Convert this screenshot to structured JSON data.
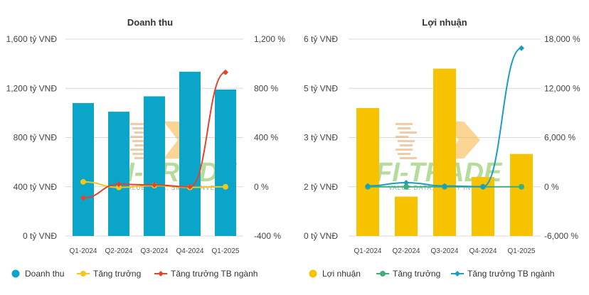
{
  "watermark": {
    "brand": "FI-TRADE",
    "tagline": "VALUE DATA, SMART INVEST"
  },
  "colors": {
    "revenue": "#0aa5c8",
    "revenue_growth": "#f5c518",
    "revenue_industry": "#e0442c",
    "profit": "#f7c200",
    "profit_growth": "#3db07a",
    "profit_industry": "#1a9dc2"
  },
  "chart_data": [
    {
      "type": "bar",
      "title": "Doanh thu",
      "categories": [
        "Q1-2024",
        "Q2-2024",
        "Q3-2024",
        "Q4-2024",
        "Q1-2025"
      ],
      "y_left": {
        "ticks": [
          "1,600 tỷ VNĐ",
          "1,200 tỷ VNĐ",
          "800 tỷ VNĐ",
          "400 tỷ VNĐ",
          "0 tỷ VNĐ"
        ],
        "range": [
          0,
          1600
        ]
      },
      "y_right": {
        "ticks": [
          "1,200 %",
          "800 %",
          "400 %",
          "0 %",
          "-400 %"
        ],
        "range": [
          -400,
          1200
        ]
      },
      "series": [
        {
          "name": "Doanh thu",
          "kind": "bar",
          "axis": "left",
          "values": [
            1080,
            1010,
            1135,
            1335,
            1190
          ]
        },
        {
          "name": "Tăng trưởng",
          "kind": "line",
          "axis": "right",
          "values": [
            40,
            -5,
            10,
            -5,
            0
          ]
        },
        {
          "name": "Tăng trưởng TB ngành",
          "kind": "line",
          "axis": "right",
          "values": [
            -90,
            20,
            15,
            0,
            930
          ]
        }
      ]
    },
    {
      "type": "bar",
      "title": "Lợi nhuận",
      "categories": [
        "Q1-2024",
        "Q2-2024",
        "Q3-2024",
        "Q4-2024",
        "Q1-2025"
      ],
      "y_left": {
        "ticks": [
          "6 tỷ VNĐ",
          "5 tỷ VNĐ",
          "3 tỷ VNĐ",
          "2 tỷ VNĐ",
          "0 tỷ VNĐ"
        ],
        "range": [
          0,
          6
        ]
      },
      "y_right": {
        "ticks": [
          "18,000 %",
          "12,000 %",
          "6,000 %",
          "0 %",
          "-6,000 %"
        ],
        "range": [
          -6000,
          18000
        ]
      },
      "series": [
        {
          "name": "Lợi nhuận",
          "kind": "bar",
          "axis": "left",
          "values": [
            3.9,
            1.2,
            5.1,
            1.8,
            2.5
          ]
        },
        {
          "name": "Tăng trưởng",
          "kind": "line",
          "axis": "right",
          "values": [
            0,
            0,
            0,
            0,
            0
          ]
        },
        {
          "name": "Tăng trưởng TB ngành",
          "kind": "line",
          "axis": "right",
          "values": [
            100,
            500,
            100,
            0,
            16900
          ]
        }
      ]
    }
  ]
}
